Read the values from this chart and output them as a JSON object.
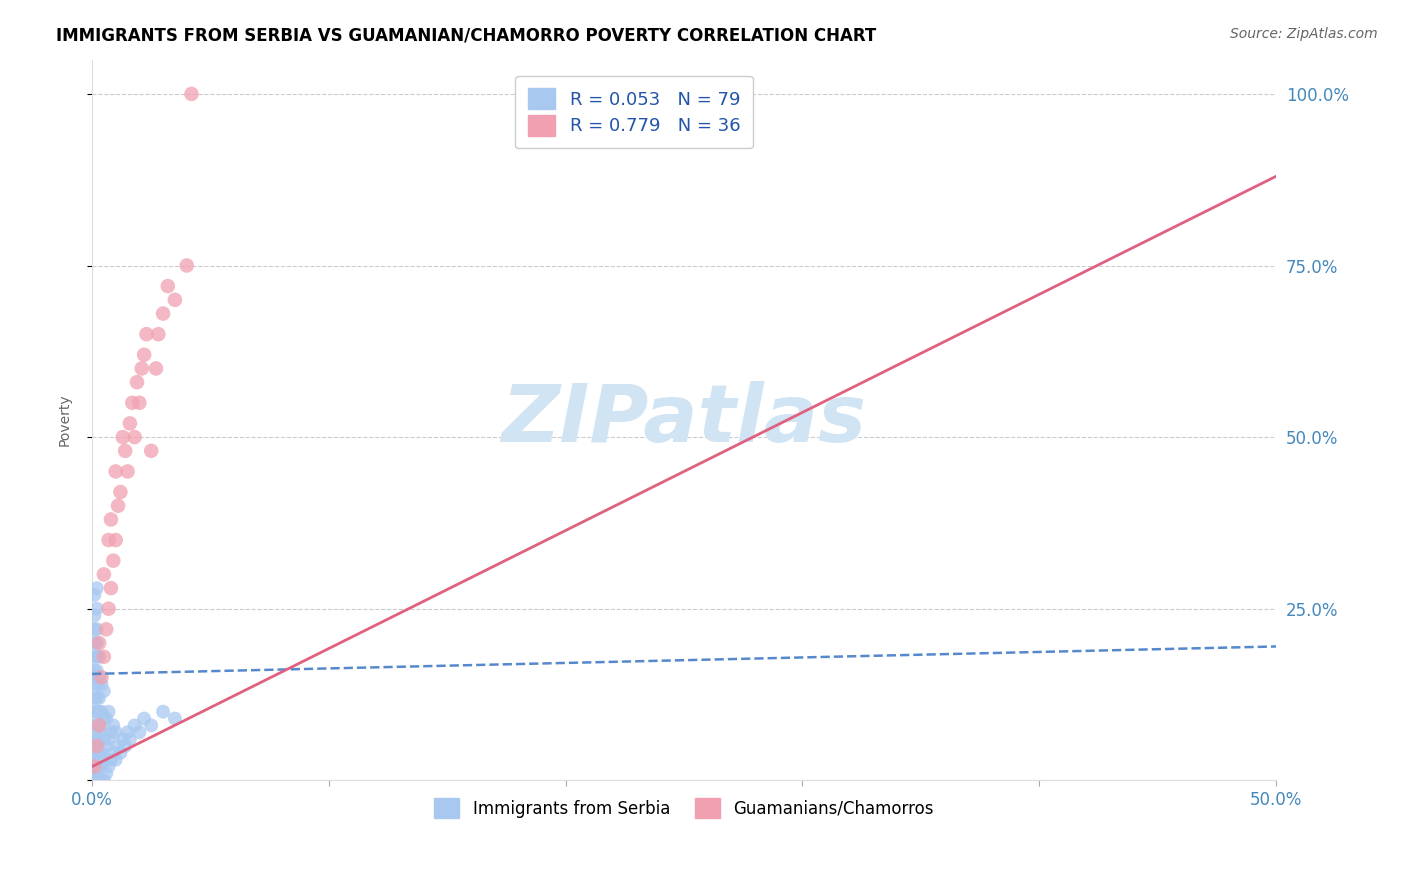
{
  "title": "IMMIGRANTS FROM SERBIA VS GUAMANIAN/CHAMORRO POVERTY CORRELATION CHART",
  "source_text": "Source: ZipAtlas.com",
  "ylabel": "Poverty",
  "x_min": 0.0,
  "x_max": 0.5,
  "y_min": 0.0,
  "y_max": 1.05,
  "y_ticks": [
    0.0,
    0.25,
    0.5,
    0.75,
    1.0
  ],
  "y_tick_labels": [
    "",
    "25.0%",
    "50.0%",
    "75.0%",
    "100.0%"
  ],
  "x_ticks": [
    0.0,
    0.1,
    0.2,
    0.3,
    0.4,
    0.5
  ],
  "x_tick_labels": [
    "0.0%",
    "",
    "",
    "",
    "",
    "50.0%"
  ],
  "serbia_R": 0.053,
  "serbia_N": 79,
  "guam_R": 0.779,
  "guam_N": 36,
  "serbia_color": "#a8c8f0",
  "guam_color": "#f0a0b0",
  "serbia_line_color": "#5588cc",
  "guam_line_color": "#e06080",
  "watermark_text": "ZIPatlas",
  "watermark_color": "#d0e4f4",
  "serbia_line_x0": 0.0,
  "serbia_line_y0": 0.155,
  "serbia_line_x1": 0.5,
  "serbia_line_y1": 0.195,
  "guam_line_x0": 0.0,
  "guam_line_y0": 0.02,
  "guam_line_x1": 0.5,
  "guam_line_y1": 0.88,
  "serbia_x": [
    0.001,
    0.001,
    0.001,
    0.001,
    0.001,
    0.001,
    0.001,
    0.001,
    0.001,
    0.001,
    0.001,
    0.001,
    0.001,
    0.001,
    0.001,
    0.001,
    0.001,
    0.001,
    0.001,
    0.001,
    0.002,
    0.002,
    0.002,
    0.002,
    0.002,
    0.002,
    0.002,
    0.002,
    0.002,
    0.002,
    0.002,
    0.002,
    0.002,
    0.002,
    0.002,
    0.003,
    0.003,
    0.003,
    0.003,
    0.003,
    0.003,
    0.003,
    0.003,
    0.003,
    0.004,
    0.004,
    0.004,
    0.004,
    0.004,
    0.004,
    0.005,
    0.005,
    0.005,
    0.005,
    0.005,
    0.006,
    0.006,
    0.006,
    0.007,
    0.007,
    0.007,
    0.008,
    0.008,
    0.009,
    0.009,
    0.01,
    0.01,
    0.011,
    0.012,
    0.013,
    0.014,
    0.015,
    0.016,
    0.018,
    0.02,
    0.022,
    0.025,
    0.03,
    0.035
  ],
  "serbia_y": [
    0.0,
    0.0,
    0.0,
    0.01,
    0.02,
    0.03,
    0.05,
    0.07,
    0.1,
    0.12,
    0.14,
    0.16,
    0.18,
    0.2,
    0.22,
    0.24,
    0.27,
    0.08,
    0.04,
    0.15,
    0.0,
    0.01,
    0.02,
    0.04,
    0.06,
    0.08,
    0.1,
    0.12,
    0.14,
    0.16,
    0.18,
    0.2,
    0.22,
    0.25,
    0.28,
    0.0,
    0.02,
    0.04,
    0.06,
    0.08,
    0.1,
    0.12,
    0.15,
    0.18,
    0.0,
    0.02,
    0.04,
    0.07,
    0.1,
    0.14,
    0.0,
    0.03,
    0.06,
    0.09,
    0.13,
    0.01,
    0.05,
    0.09,
    0.02,
    0.06,
    0.1,
    0.03,
    0.07,
    0.04,
    0.08,
    0.03,
    0.07,
    0.05,
    0.04,
    0.06,
    0.05,
    0.07,
    0.06,
    0.08,
    0.07,
    0.09,
    0.08,
    0.1,
    0.09
  ],
  "guam_x": [
    0.001,
    0.002,
    0.003,
    0.003,
    0.004,
    0.005,
    0.005,
    0.006,
    0.007,
    0.007,
    0.008,
    0.008,
    0.009,
    0.01,
    0.01,
    0.011,
    0.012,
    0.013,
    0.014,
    0.015,
    0.016,
    0.017,
    0.018,
    0.019,
    0.02,
    0.021,
    0.022,
    0.023,
    0.025,
    0.027,
    0.028,
    0.03,
    0.032,
    0.035,
    0.04,
    0.042
  ],
  "guam_y": [
    0.02,
    0.05,
    0.08,
    0.2,
    0.15,
    0.18,
    0.3,
    0.22,
    0.35,
    0.25,
    0.28,
    0.38,
    0.32,
    0.35,
    0.45,
    0.4,
    0.42,
    0.5,
    0.48,
    0.45,
    0.52,
    0.55,
    0.5,
    0.58,
    0.55,
    0.6,
    0.62,
    0.65,
    0.48,
    0.6,
    0.65,
    0.68,
    0.72,
    0.7,
    0.75,
    1.0
  ]
}
